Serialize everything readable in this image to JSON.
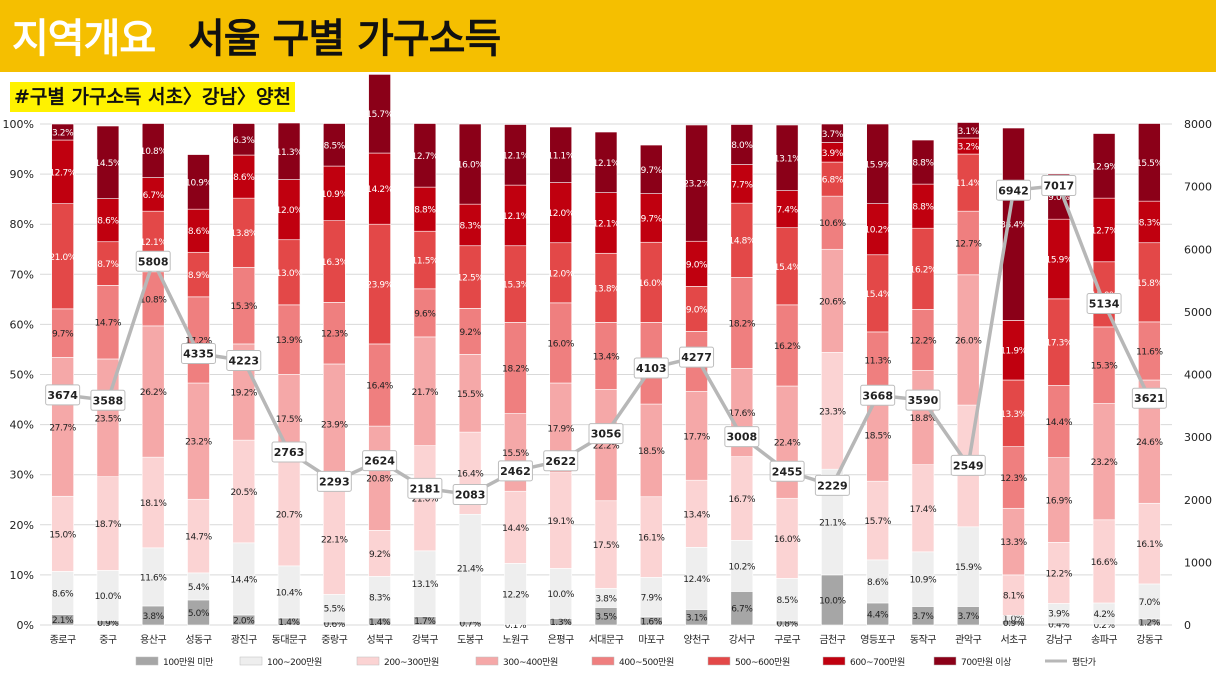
{
  "header": {
    "title_prefix": "지역개요",
    "title_main": "서울 구별 가구소득",
    "subtitle": "#구별 가구소득 서초〉강남〉양천"
  },
  "chart_data": {
    "type": "bar",
    "stacked": true,
    "categories": [
      "종로구",
      "중구",
      "용산구",
      "성동구",
      "광진구",
      "동대문구",
      "중랑구",
      "성북구",
      "강북구",
      "도봉구",
      "노원구",
      "은평구",
      "서대문구",
      "마포구",
      "양천구",
      "강서구",
      "구로구",
      "금천구",
      "영등포구",
      "동작구",
      "관악구",
      "서초구",
      "강남구",
      "송파구",
      "강동구"
    ],
    "y_axis_left": {
      "ticks": [
        "0%",
        "10%",
        "20%",
        "30%",
        "40%",
        "50%",
        "60%",
        "70%",
        "80%",
        "90%",
        "100%"
      ],
      "ylim": [
        0,
        100
      ]
    },
    "y_axis_right": {
      "ticks": [
        "0",
        "1000",
        "2000",
        "3000",
        "4000",
        "5000",
        "6000",
        "7000",
        "8000"
      ],
      "ylim": [
        0,
        8000
      ]
    },
    "grid": true,
    "legend_position": "bottom",
    "series": [
      {
        "name": "100만원 미만",
        "color": "#a6a6a6",
        "values": [
          2.1,
          0.9,
          3.8,
          5.0,
          2.0,
          1.4,
          0.6,
          1.4,
          1.7,
          0.7,
          0.1,
          1.3,
          3.5,
          1.6,
          3.1,
          6.7,
          0.8,
          10.0,
          4.4,
          3.7,
          3.7,
          0.9,
          0.4,
          0.2,
          1.2
        ]
      },
      {
        "name": "100~200만원",
        "color": "#eeeeee",
        "values": [
          8.6,
          10.0,
          11.6,
          5.4,
          14.4,
          10.4,
          5.5,
          8.3,
          13.1,
          21.4,
          12.2,
          10.0,
          3.8,
          7.9,
          12.4,
          10.2,
          8.5,
          21.1,
          8.6,
          10.9,
          15.9,
          1.0,
          3.9,
          4.2,
          7.0
        ]
      },
      {
        "name": "200~300만원",
        "color": "#fbd3d3",
        "values": [
          15.0,
          18.7,
          18.1,
          14.7,
          20.5,
          20.7,
          22.1,
          9.2,
          21.0,
          16.4,
          14.4,
          19.1,
          17.5,
          16.1,
          13.4,
          16.7,
          16.0,
          23.3,
          15.7,
          17.4,
          24.3,
          8.1,
          12.2,
          16.6,
          16.1
        ]
      },
      {
        "name": "300~400만원",
        "color": "#f5a8a8",
        "values": [
          27.7,
          23.5,
          26.2,
          23.2,
          19.2,
          17.5,
          23.9,
          20.8,
          21.7,
          15.5,
          15.5,
          17.9,
          22.2,
          18.5,
          17.7,
          17.6,
          22.4,
          20.6,
          18.5,
          18.8,
          26.0,
          13.3,
          16.9,
          23.2,
          24.6
        ]
      },
      {
        "name": "400~500만원",
        "color": "#ef7f7f",
        "values": [
          9.7,
          14.7,
          10.8,
          17.2,
          15.3,
          13.9,
          12.3,
          16.4,
          9.6,
          9.2,
          18.2,
          16.0,
          13.4,
          16.3,
          12.0,
          18.2,
          16.2,
          10.6,
          11.3,
          12.2,
          12.7,
          12.3,
          14.4,
          15.3,
          11.6
        ]
      },
      {
        "name": "500~600만원",
        "color": "#e34848",
        "values": [
          21.0,
          8.7,
          12.1,
          8.9,
          13.8,
          13.0,
          16.3,
          23.9,
          11.5,
          12.5,
          15.3,
          12.0,
          13.8,
          16.0,
          9.0,
          14.8,
          15.4,
          6.8,
          15.4,
          16.2,
          11.4,
          13.3,
          17.3,
          13.0,
          15.8
        ]
      },
      {
        "name": "600~700만원",
        "color": "#c0000f",
        "values": [
          12.7,
          8.6,
          6.7,
          8.6,
          8.6,
          12.0,
          10.9,
          14.2,
          8.8,
          8.3,
          12.1,
          12.0,
          12.1,
          9.7,
          9.0,
          7.7,
          7.4,
          3.9,
          10.2,
          8.8,
          3.2,
          11.9,
          15.9,
          12.7,
          8.3
        ]
      },
      {
        "name": "700만원 이상",
        "color": "#8b0018",
        "values": [
          3.2,
          14.5,
          10.8,
          10.9,
          6.3,
          11.3,
          8.5,
          15.7,
          12.7,
          16.0,
          12.1,
          11.1,
          12.1,
          9.7,
          23.2,
          8.0,
          13.1,
          3.7,
          15.9,
          8.8,
          3.1,
          38.4,
          9.0,
          12.9,
          15.5
        ]
      },
      {
        "name": "평단가",
        "type": "line",
        "color": "#b7b7b7",
        "values": [
          3674,
          3588,
          5808,
          4335,
          4223,
          2763,
          2293,
          2624,
          2181,
          2083,
          2462,
          2622,
          3056,
          4103,
          4277,
          3008,
          2455,
          2229,
          3668,
          3590,
          2549,
          6942,
          7017,
          5134,
          3621
        ]
      }
    ]
  }
}
